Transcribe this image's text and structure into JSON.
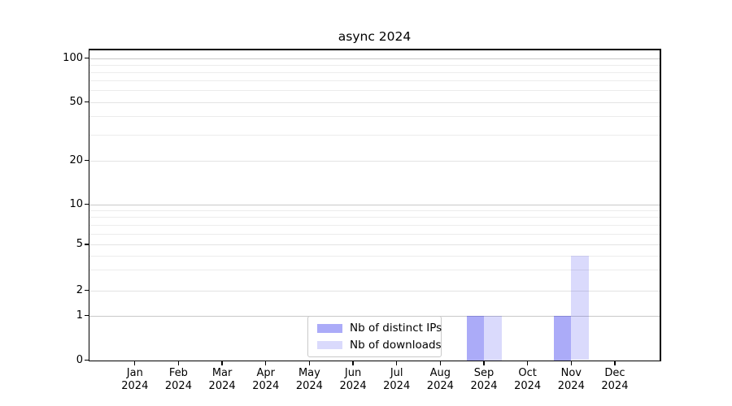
{
  "chart_data": {
    "type": "bar",
    "title": "async 2024",
    "xlabel": "",
    "ylabel": "",
    "yscale": "symlog",
    "ylim": [
      0,
      116
    ],
    "grid": "horizontal",
    "legend_position": "lower center",
    "categories": [
      "Jan",
      "Feb",
      "Mar",
      "Apr",
      "May",
      "Jun",
      "Jul",
      "Aug",
      "Sep",
      "Oct",
      "Nov",
      "Dec"
    ],
    "x_labels": [
      [
        "Jan",
        "2024"
      ],
      [
        "Feb",
        "2024"
      ],
      [
        "Mar",
        "2024"
      ],
      [
        "Apr",
        "2024"
      ],
      [
        "May",
        "2024"
      ],
      [
        "Jun",
        "2024"
      ],
      [
        "Jul",
        "2024"
      ],
      [
        "Aug",
        "2024"
      ],
      [
        "Sep",
        "2024"
      ],
      [
        "Oct",
        "2024"
      ],
      [
        "Nov",
        "2024"
      ],
      [
        "Dec",
        "2024"
      ]
    ],
    "series": [
      {
        "name": "Nb of distinct IPs",
        "color": "rgba(10,10,235,0.34)",
        "values": [
          0,
          0,
          0,
          0,
          0,
          0,
          0,
          0,
          1,
          0,
          1,
          0
        ]
      },
      {
        "name": "Nb of downloads",
        "color": "rgba(10,10,235,0.15)",
        "values": [
          0,
          0,
          0,
          0,
          0,
          0,
          0,
          0,
          1,
          0,
          4,
          0
        ]
      }
    ],
    "yticks": [
      0,
      1,
      2,
      5,
      10,
      20,
      50,
      100
    ],
    "minor_ticks": [
      3,
      4,
      6,
      7,
      8,
      9,
      30,
      40,
      60,
      70,
      80,
      90
    ],
    "decade_ticks": [
      1,
      10,
      100
    ],
    "colors": {
      "spine": "#000000",
      "grid_decade": "#c9c9c9",
      "grid_labeled": "#e3e3e3",
      "grid_minor": "#ececec",
      "legend_border": "#c9c9c9",
      "text": "#000000"
    }
  }
}
